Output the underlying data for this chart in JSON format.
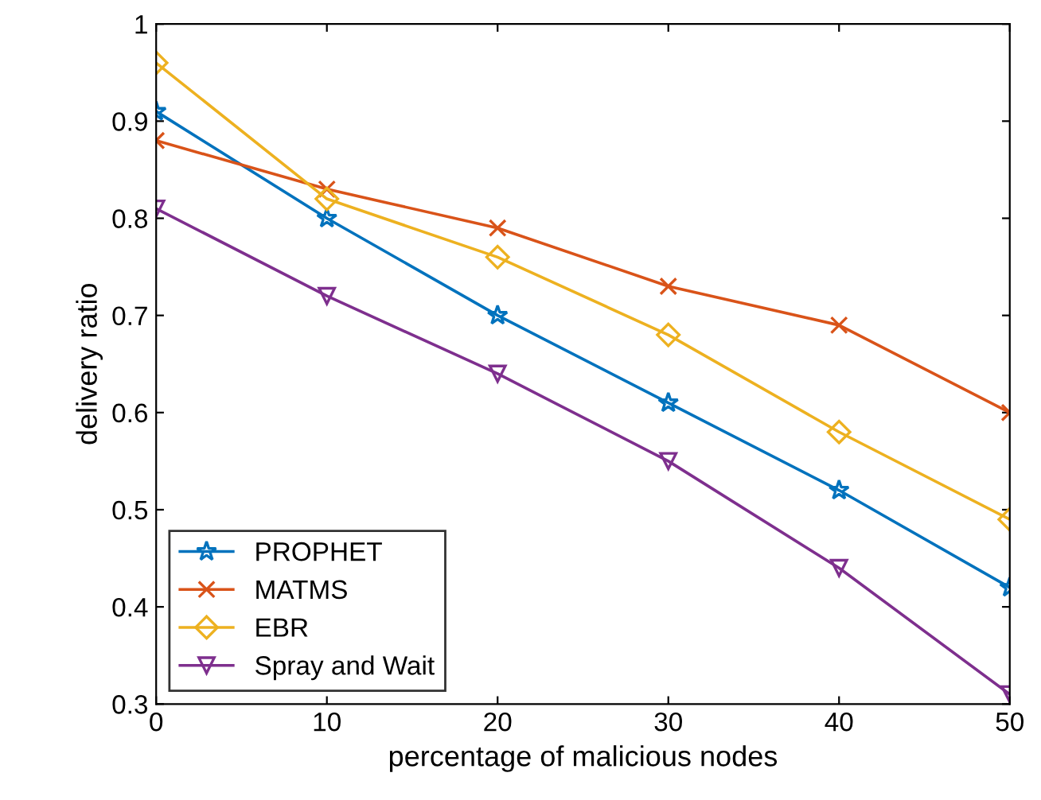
{
  "chart_data": {
    "type": "line",
    "xlabel": "percentage of malicious nodes",
    "ylabel": "delivery ratio",
    "x": [
      0,
      10,
      20,
      30,
      40,
      50
    ],
    "series": [
      {
        "name": "PROPHET",
        "color": "#0072bd",
        "marker": "star",
        "values": [
          0.91,
          0.8,
          0.7,
          0.61,
          0.52,
          0.42
        ]
      },
      {
        "name": "MATMS",
        "color": "#d95319",
        "marker": "cross",
        "values": [
          0.88,
          0.83,
          0.79,
          0.73,
          0.69,
          0.6
        ]
      },
      {
        "name": "EBR",
        "color": "#edb120",
        "marker": "diamond",
        "values": [
          0.96,
          0.82,
          0.76,
          0.68,
          0.58,
          0.49
        ]
      },
      {
        "name": "Spray and Wait",
        "color": "#7e2f8e",
        "marker": "triangle",
        "values": [
          0.81,
          0.72,
          0.64,
          0.55,
          0.44,
          0.31
        ]
      }
    ],
    "xlim": [
      0,
      50
    ],
    "xticks": [
      0,
      10,
      20,
      30,
      40,
      50
    ],
    "ylim": [
      0.3,
      1
    ],
    "yticks": [
      0.3,
      0.4,
      0.5,
      0.6,
      0.7,
      0.8,
      0.9,
      1
    ],
    "grid": false,
    "legend": "bottom left",
    "line_style": "solid"
  }
}
